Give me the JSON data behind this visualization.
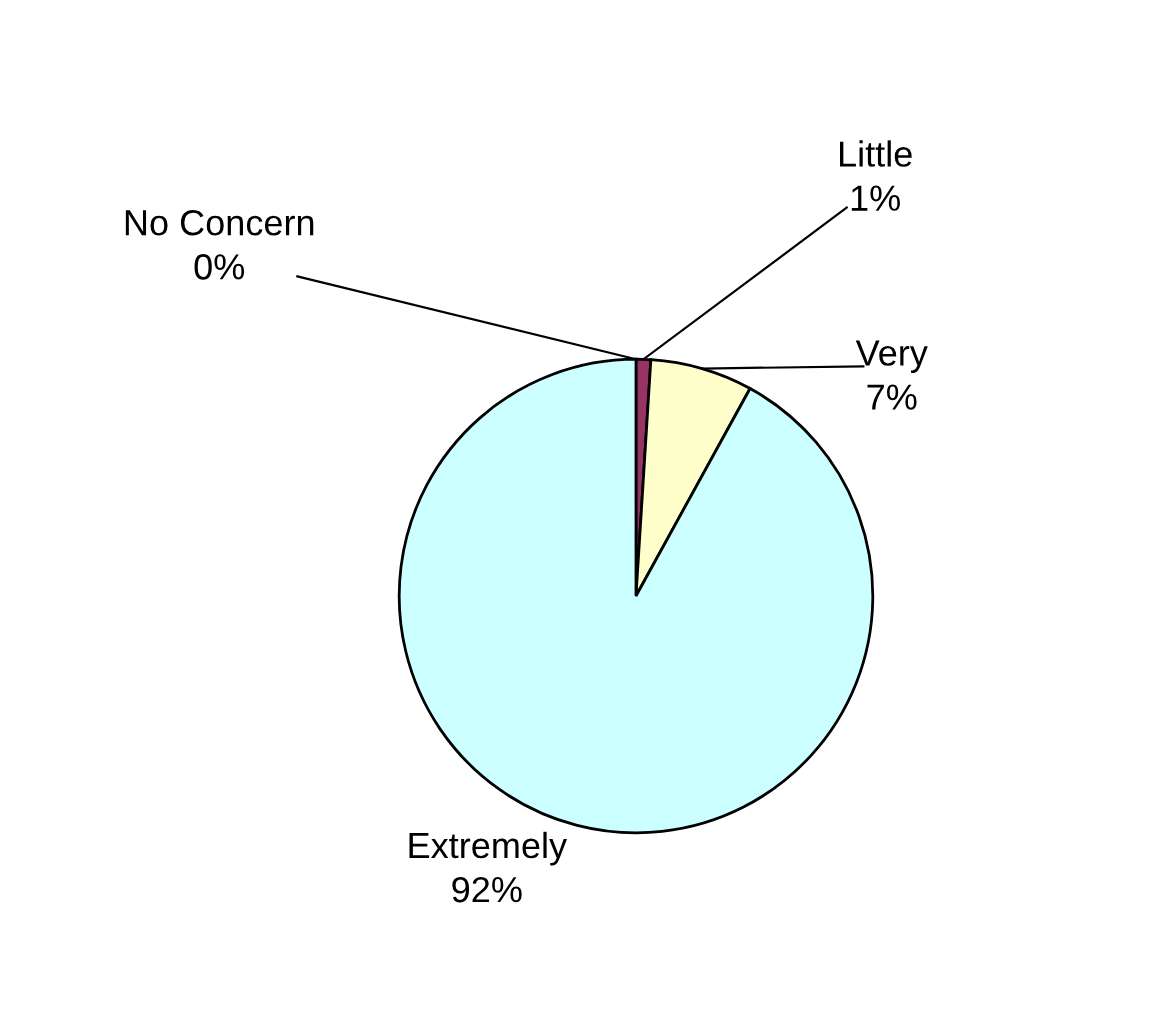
{
  "chart_data": {
    "type": "pie",
    "categories": [
      "No Concern",
      "Little",
      "Very",
      "Extremely"
    ],
    "values": [
      0,
      1,
      7,
      92
    ],
    "colors": [
      "#ff99cc",
      "#993366",
      "#ffffcc",
      "#ccffff"
    ],
    "value_labels": [
      "0%",
      "1%",
      "7%",
      "92%"
    ]
  }
}
